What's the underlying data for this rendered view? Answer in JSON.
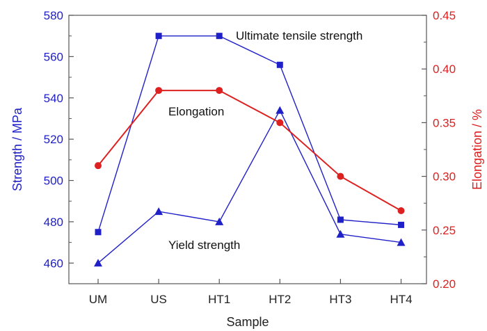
{
  "chart_data": {
    "type": "line",
    "categories": [
      "UM",
      "US",
      "HT1",
      "HT2",
      "HT3",
      "HT4"
    ],
    "xlabel": "Sample",
    "ylabel_left": "Strength / MPa",
    "ylabel_right": "Elongation / %",
    "ylim_left": [
      450,
      580
    ],
    "ylim_right": [
      0.2,
      0.45
    ],
    "yticks_left": [
      460,
      480,
      500,
      520,
      540,
      560,
      580
    ],
    "yticks_right": [
      "0.20",
      "0.25",
      "0.30",
      "0.35",
      "0.40",
      "0.45"
    ],
    "series": [
      {
        "name": "Ultimate tensile strength",
        "axis": "left",
        "marker": "square",
        "color": "#2020c8",
        "values": [
          475,
          570,
          570,
          556,
          481,
          478.5
        ]
      },
      {
        "name": "Yield strength",
        "axis": "left",
        "marker": "triangle",
        "color": "#2020c8",
        "values": [
          460,
          485,
          480,
          534,
          474,
          470
        ]
      },
      {
        "name": "Elongation",
        "axis": "right",
        "marker": "circle",
        "color": "#dd2020",
        "values": [
          0.31,
          0.38,
          0.38,
          0.35,
          0.3,
          0.268
        ]
      }
    ],
    "left_axis_color": "#2020c8",
    "right_axis_color": "#dd2020",
    "grid": false,
    "legend": "none (series labelled inline)"
  }
}
